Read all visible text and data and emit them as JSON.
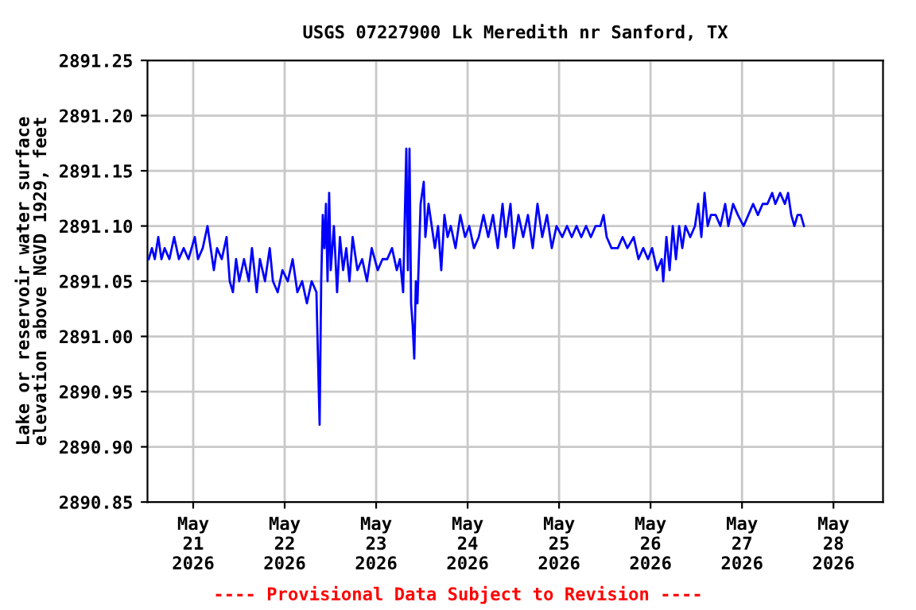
{
  "chart_data": {
    "type": "line",
    "title": "USGS 07227900 Lk Meredith nr Sanford, TX",
    "ylabel": "Lake or reservoir water surface\nelevation above NGVD 1929, feet",
    "annotations": [
      "---- Provisional Data Subject to Revision ----"
    ],
    "x": [
      "2026-05-20T12:20",
      "2026-05-20T13:10",
      "2026-05-20T13:55",
      "2026-05-20T14:50",
      "2026-05-20T15:40",
      "2026-05-20T16:30",
      "2026-05-20T17:45",
      "2026-05-20T19:00",
      "2026-05-20T20:15",
      "2026-05-20T21:30",
      "2026-05-20T22:45",
      "2026-05-20T23:35",
      "2026-05-21T00:25",
      "2026-05-21T01:15",
      "2026-05-21T02:30",
      "2026-05-21T03:45",
      "2026-05-21T04:35",
      "2026-05-21T05:25",
      "2026-05-21T06:15",
      "2026-05-21T07:30",
      "2026-05-21T08:45",
      "2026-05-21T09:35",
      "2026-05-21T10:25",
      "2026-05-21T11:15",
      "2026-05-21T12:05",
      "2026-05-21T13:20",
      "2026-05-21T14:35",
      "2026-05-21T15:25",
      "2026-05-21T16:40",
      "2026-05-21T17:30",
      "2026-05-21T18:50",
      "2026-05-21T20:05",
      "2026-05-21T20:55",
      "2026-05-21T22:10",
      "2026-05-21T23:25",
      "2026-05-22T00:50",
      "2026-05-22T02:05",
      "2026-05-22T03:20",
      "2026-05-22T04:35",
      "2026-05-22T05:50",
      "2026-05-22T07:05",
      "2026-05-22T08:20",
      "2026-05-22T09:10",
      "2026-05-22T09:35",
      "2026-05-22T10:00",
      "2026-05-22T10:25",
      "2026-05-22T10:50",
      "2026-05-22T11:15",
      "2026-05-22T11:40",
      "2026-05-22T12:05",
      "2026-05-22T12:55",
      "2026-05-22T13:45",
      "2026-05-22T14:30",
      "2026-05-22T15:20",
      "2026-05-22T16:10",
      "2026-05-22T17:00",
      "2026-05-22T17:50",
      "2026-05-22T19:05",
      "2026-05-22T20:20",
      "2026-05-22T21:35",
      "2026-05-22T22:50",
      "2026-05-23T00:25",
      "2026-05-23T01:40",
      "2026-05-23T02:55",
      "2026-05-23T04:10",
      "2026-05-23T05:25",
      "2026-05-23T06:15",
      "2026-05-23T07:05",
      "2026-05-23T07:55",
      "2026-05-23T08:20",
      "2026-05-23T08:45",
      "2026-05-23T09:10",
      "2026-05-23T09:35",
      "2026-05-23T10:00",
      "2026-05-23T10:25",
      "2026-05-23T10:50",
      "2026-05-23T11:40",
      "2026-05-23T12:30",
      "2026-05-23T12:55",
      "2026-05-23T13:45",
      "2026-05-23T14:35",
      "2026-05-23T15:25",
      "2026-05-23T16:15",
      "2026-05-23T17:05",
      "2026-05-23T17:55",
      "2026-05-23T18:45",
      "2026-05-23T19:35",
      "2026-05-23T20:50",
      "2026-05-23T22:05",
      "2026-05-23T23:20",
      "2026-05-24T00:25",
      "2026-05-24T01:40",
      "2026-05-24T02:55",
      "2026-05-24T04:10",
      "2026-05-24T05:25",
      "2026-05-24T06:40",
      "2026-05-24T07:55",
      "2026-05-24T09:10",
      "2026-05-24T10:00",
      "2026-05-24T11:15",
      "2026-05-24T12:05",
      "2026-05-24T13:20",
      "2026-05-24T14:35",
      "2026-05-24T15:50",
      "2026-05-24T17:05",
      "2026-05-24T18:20",
      "2026-05-24T19:35",
      "2026-05-24T20:50",
      "2026-05-24T22:05",
      "2026-05-24T23:20",
      "2026-05-25T00:50",
      "2026-05-25T02:05",
      "2026-05-25T03:20",
      "2026-05-25T04:35",
      "2026-05-25T05:50",
      "2026-05-25T07:05",
      "2026-05-25T08:20",
      "2026-05-25T09:35",
      "2026-05-25T10:50",
      "2026-05-25T11:40",
      "2026-05-25T12:30",
      "2026-05-25T13:45",
      "2026-05-25T15:25",
      "2026-05-25T16:40",
      "2026-05-25T17:55",
      "2026-05-25T19:35",
      "2026-05-25T20:50",
      "2026-05-25T22:05",
      "2026-05-25T23:20",
      "2026-05-26T00:25",
      "2026-05-26T01:40",
      "2026-05-26T02:55",
      "2026-05-26T03:20",
      "2026-05-26T04:10",
      "2026-05-26T05:00",
      "2026-05-26T05:50",
      "2026-05-26T06:40",
      "2026-05-26T07:30",
      "2026-05-26T08:20",
      "2026-05-26T09:10",
      "2026-05-26T10:25",
      "2026-05-26T11:40",
      "2026-05-26T12:30",
      "2026-05-26T13:20",
      "2026-05-26T14:10",
      "2026-05-26T15:00",
      "2026-05-26T15:50",
      "2026-05-26T17:05",
      "2026-05-26T18:20",
      "2026-05-26T19:35",
      "2026-05-26T20:25",
      "2026-05-26T21:40",
      "2026-05-26T22:55",
      "2026-05-27T00:25",
      "2026-05-27T01:40",
      "2026-05-27T02:55",
      "2026-05-27T04:10",
      "2026-05-27T05:25",
      "2026-05-27T06:40",
      "2026-05-27T07:55",
      "2026-05-27T08:45",
      "2026-05-27T10:00",
      "2026-05-27T11:15",
      "2026-05-27T12:05",
      "2026-05-27T12:55",
      "2026-05-27T13:45",
      "2026-05-27T14:35",
      "2026-05-27T15:25",
      "2026-05-27T16:15"
    ],
    "series": [
      {
        "color": "#0000ff",
        "values": [
          2891.07,
          2891.08,
          2891.07,
          2891.09,
          2891.07,
          2891.08,
          2891.07,
          2891.09,
          2891.07,
          2891.08,
          2891.07,
          2891.08,
          2891.09,
          2891.07,
          2891.08,
          2891.1,
          2891.08,
          2891.06,
          2891.08,
          2891.07,
          2891.09,
          2891.05,
          2891.04,
          2891.07,
          2891.05,
          2891.07,
          2891.05,
          2891.08,
          2891.04,
          2891.07,
          2891.05,
          2891.08,
          2891.05,
          2891.04,
          2891.06,
          2891.05,
          2891.07,
          2891.04,
          2891.05,
          2891.03,
          2891.05,
          2891.04,
          2890.92,
          2891.05,
          2891.11,
          2891.08,
          2891.12,
          2891.05,
          2891.13,
          2891.06,
          2891.1,
          2891.04,
          2891.09,
          2891.06,
          2891.08,
          2891.05,
          2891.09,
          2891.06,
          2891.07,
          2891.05,
          2891.08,
          2891.06,
          2891.07,
          2891.07,
          2891.08,
          2891.06,
          2891.07,
          2891.04,
          2891.17,
          2891.06,
          2891.17,
          2891.03,
          2891.01,
          2890.98,
          2891.05,
          2891.03,
          2891.12,
          2891.14,
          2891.09,
          2891.12,
          2891.1,
          2891.08,
          2891.1,
          2891.06,
          2891.11,
          2891.09,
          2891.1,
          2891.08,
          2891.11,
          2891.09,
          2891.1,
          2891.08,
          2891.09,
          2891.11,
          2891.09,
          2891.11,
          2891.08,
          2891.12,
          2891.09,
          2891.12,
          2891.08,
          2891.11,
          2891.09,
          2891.11,
          2891.08,
          2891.12,
          2891.09,
          2891.11,
          2891.08,
          2891.1,
          2891.09,
          2891.1,
          2891.09,
          2891.1,
          2891.09,
          2891.1,
          2891.09,
          2891.1,
          2891.1,
          2891.11,
          2891.09,
          2891.08,
          2891.08,
          2891.09,
          2891.08,
          2891.09,
          2891.07,
          2891.08,
          2891.07,
          2891.08,
          2891.06,
          2891.07,
          2891.05,
          2891.09,
          2891.06,
          2891.1,
          2891.07,
          2891.1,
          2891.08,
          2891.1,
          2891.09,
          2891.1,
          2891.12,
          2891.09,
          2891.13,
          2891.1,
          2891.11,
          2891.11,
          2891.1,
          2891.12,
          2891.1,
          2891.12,
          2891.11,
          2891.1,
          2891.11,
          2891.12,
          2891.11,
          2891.12,
          2891.12,
          2891.13,
          2891.12,
          2891.13,
          2891.12,
          2891.13,
          2891.11,
          2891.1,
          2891.11,
          2891.11,
          2891.1
        ]
      }
    ],
    "xlim": [
      "2026-05-20T12:00",
      "2026-05-28T13:00"
    ],
    "xticks": [
      {
        "value": "2026-05-21",
        "label": "May\n21\n2026"
      },
      {
        "value": "2026-05-22",
        "label": "May\n22\n2026"
      },
      {
        "value": "2026-05-23",
        "label": "May\n23\n2026"
      },
      {
        "value": "2026-05-24",
        "label": "May\n24\n2026"
      },
      {
        "value": "2026-05-25",
        "label": "May\n25\n2026"
      },
      {
        "value": "2026-05-26",
        "label": "May\n26\n2026"
      },
      {
        "value": "2026-05-27",
        "label": "May\n27\n2026"
      },
      {
        "value": "2026-05-28",
        "label": "May\n28\n2026"
      }
    ],
    "ylim": [
      2890.85,
      2891.25
    ],
    "yticks": [
      {
        "value": 2890.85,
        "label": "2890.85"
      },
      {
        "value": 2890.9,
        "label": "2890.90"
      },
      {
        "value": 2890.95,
        "label": "2890.95"
      },
      {
        "value": 2891.0,
        "label": "2891.00"
      },
      {
        "value": 2891.05,
        "label": "2891.05"
      },
      {
        "value": 2891.1,
        "label": "2891.10"
      },
      {
        "value": 2891.15,
        "label": "2891.15"
      },
      {
        "value": 2891.2,
        "label": "2891.20"
      },
      {
        "value": 2891.25,
        "label": "2891.25"
      }
    ],
    "grid": true,
    "line_style": "solid",
    "marker": "none"
  }
}
